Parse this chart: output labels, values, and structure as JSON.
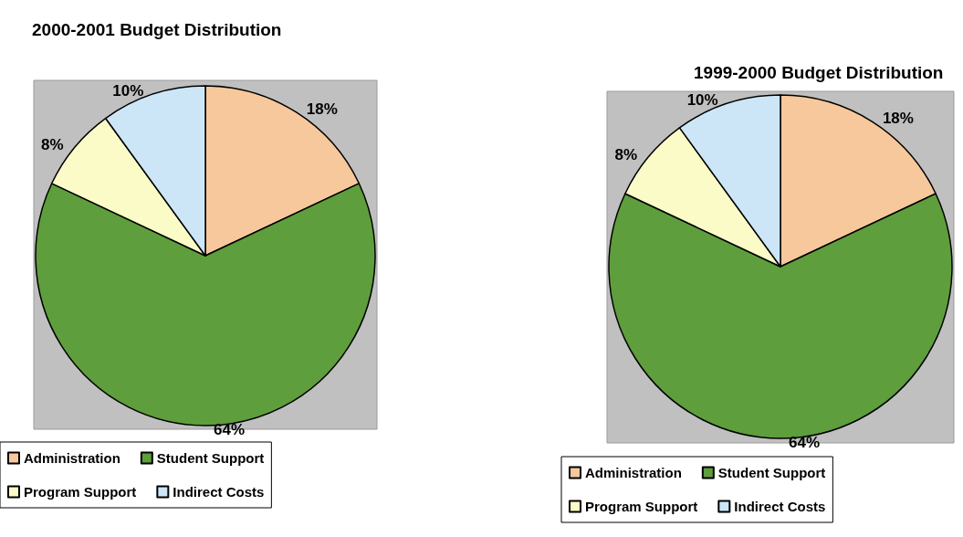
{
  "chart_data": [
    {
      "type": "pie",
      "title": "2000-2001 Budget Distribution",
      "categories": [
        "Administration",
        "Student Support",
        "Program Support",
        "Indirect Costs"
      ],
      "values": [
        18,
        64,
        8,
        10
      ],
      "value_labels": [
        "18%",
        "64%",
        "8%",
        "10%"
      ],
      "colors": [
        "#f7c89c",
        "#5e9e3c",
        "#fbfbc8",
        "#cde6f7"
      ],
      "legend": "bottom"
    },
    {
      "type": "pie",
      "title": "1999-2000 Budget Distribution",
      "categories": [
        "Administration",
        "Student Support",
        "Program Support",
        "Indirect Costs"
      ],
      "values": [
        18,
        64,
        8,
        10
      ],
      "value_labels": [
        "18%",
        "64%",
        "8%",
        "10%"
      ],
      "colors": [
        "#f7c89c",
        "#5e9e3c",
        "#fbfbc8",
        "#cde6f7"
      ],
      "legend": "bottom"
    }
  ]
}
